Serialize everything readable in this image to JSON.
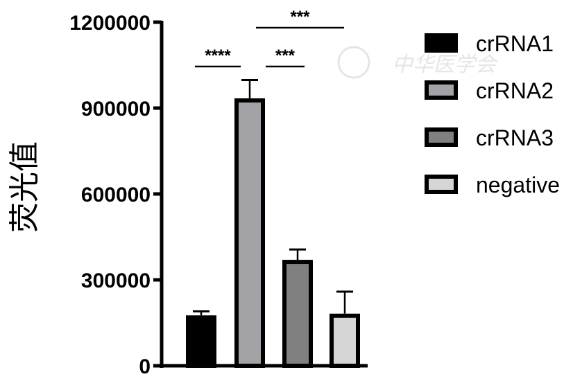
{
  "chart_data": {
    "type": "bar",
    "title": "",
    "xlabel": "",
    "ylabel": "荧光值",
    "ylim": [
      0,
      1200000
    ],
    "yticks": [
      "0",
      "300000",
      "600000",
      "900000",
      "1200000"
    ],
    "grid": false,
    "legend_position": "right",
    "categories": [
      "crRNA1",
      "crRNA2",
      "crRNA3",
      "negative"
    ],
    "values": [
      176000,
      934000,
      370000,
      182000
    ],
    "error_upper": [
      190000,
      998000,
      406000,
      259000
    ],
    "colors": [
      "#000000",
      "#a3a3a7",
      "#808080",
      "#d6d6d6"
    ],
    "significance": [
      {
        "from": "crRNA1",
        "to": "crRNA2",
        "label": "****"
      },
      {
        "from": "crRNA2",
        "to": "crRNA3",
        "label": "***"
      },
      {
        "from": "crRNA2",
        "to": "negative",
        "label": "***"
      }
    ]
  },
  "watermark": {
    "text": "中华医学会",
    "icon": "society-seal-icon"
  }
}
